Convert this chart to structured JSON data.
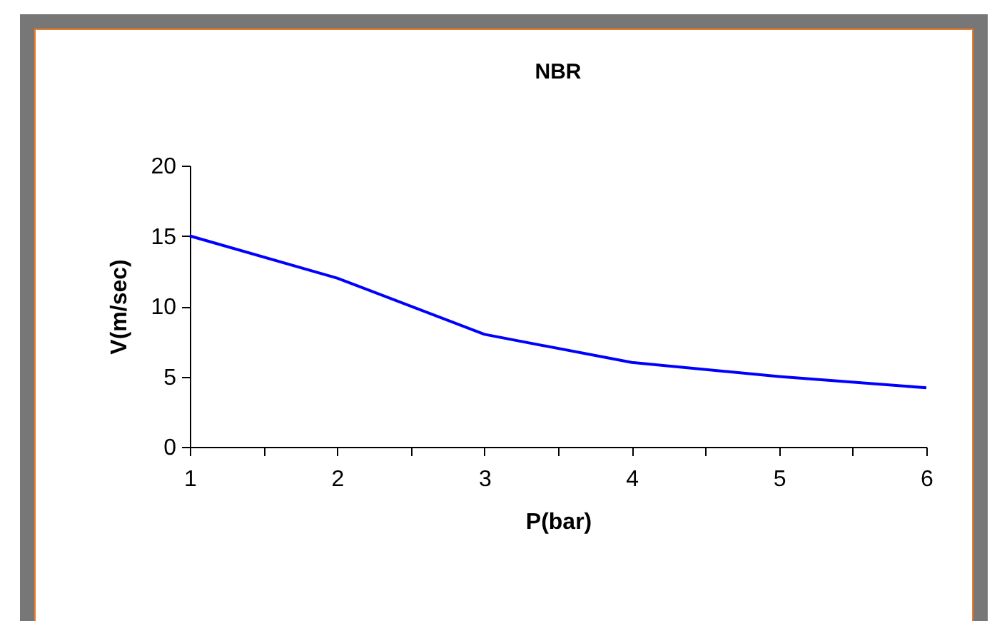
{
  "chart_data": {
    "type": "line",
    "title": "NBR",
    "xlabel": "P(bar)",
    "ylabel": "V(m/sec)",
    "x": [
      1,
      2,
      3,
      4,
      5,
      6
    ],
    "series": [
      {
        "color": "#0000ff",
        "values": [
          15,
          12,
          8,
          6,
          5,
          4.2
        ]
      }
    ],
    "xlim": [
      1,
      6
    ],
    "xticks": [
      1,
      {
        "value": 1.5,
        "label": null
      },
      2,
      {
        "value": 2.5,
        "label": null
      },
      3,
      {
        "value": 3.5,
        "label": null
      },
      4,
      {
        "value": 4.5,
        "label": null
      },
      5,
      {
        "value": 5.5,
        "label": null
      },
      6
    ],
    "ylim": [
      0,
      20
    ],
    "yticks": [
      0,
      5,
      10,
      15,
      20
    ],
    "grid": false,
    "marker": "none",
    "line_style": "solid"
  }
}
